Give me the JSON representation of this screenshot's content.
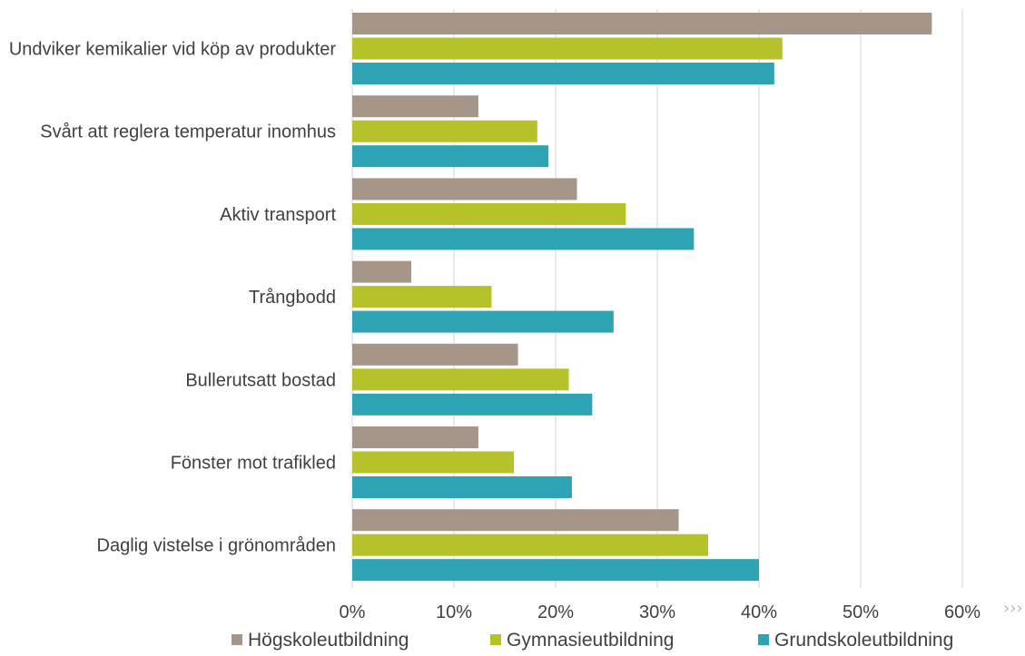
{
  "chart_data": {
    "type": "bar",
    "orientation": "horizontal",
    "categories": [
      "Undviker kemikalier vid köp av produkter",
      "Svårt att reglera temperatur inomhus",
      "Aktiv transport",
      "Trångbodd",
      "Bullerutsatt bostad",
      "Fönster mot trafikled",
      "Daglig vistelse i grönområden"
    ],
    "series": [
      {
        "name": "Högskoleutbildning",
        "color": "#a6968a",
        "values": [
          57,
          12.4,
          22.1,
          5.8,
          16.3,
          12.4,
          32.1
        ]
      },
      {
        "name": "Gymnasieutbildning",
        "color": "#b5c22a",
        "values": [
          42.3,
          18.2,
          26.9,
          13.7,
          21.3,
          15.9,
          35
        ]
      },
      {
        "name": "Grundskoleutbildning",
        "color": "#2ea3b3",
        "values": [
          41.5,
          19.3,
          33.6,
          25.7,
          23.6,
          21.6,
          40
        ]
      }
    ],
    "x_ticks": [
      "0%",
      "10%",
      "20%",
      "30%",
      "40%",
      "50%",
      "60%"
    ],
    "xlim": [
      0,
      60
    ],
    "grid": true,
    "legend_position": "bottom"
  },
  "more_icon": "chevron-double-right-icon",
  "more_glyph": "›››"
}
